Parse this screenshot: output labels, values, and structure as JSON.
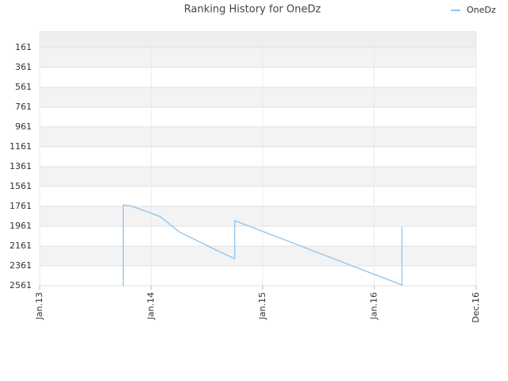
{
  "chart_data": {
    "type": "line",
    "title": "Ranking History for OneDz",
    "x": [
      "2013-10",
      "2013-10",
      "2013-10",
      "2013-11",
      "2014-02",
      "2014-04",
      "2014-08",
      "2014-10",
      "2014-10",
      "2016-04",
      "2016-04"
    ],
    "series": [
      {
        "name": "OneDz",
        "color": "#8ec4ee",
        "values": [
          2561,
          1801,
          1745,
          1761,
          1865,
          2017,
          2201,
          2289,
          1905,
          2553,
          1969
        ]
      }
    ],
    "xlim": [
      "2013-01",
      "2016-12"
    ],
    "xticks": [
      {
        "value": "2013-01",
        "label": "Jan.13"
      },
      {
        "value": "2014-01",
        "label": "Jan.14"
      },
      {
        "value": "2015-01",
        "label": "Jan.15"
      },
      {
        "value": "2016-01",
        "label": "Jan.16"
      },
      {
        "value": "2016-12",
        "label": "Dec.16"
      }
    ],
    "ylim": [
      2561,
      1
    ],
    "yticks": [
      161,
      361,
      561,
      761,
      961,
      1161,
      1361,
      1561,
      1761,
      1961,
      2161,
      2361,
      2561
    ],
    "grid": true,
    "legend": "top-right"
  }
}
